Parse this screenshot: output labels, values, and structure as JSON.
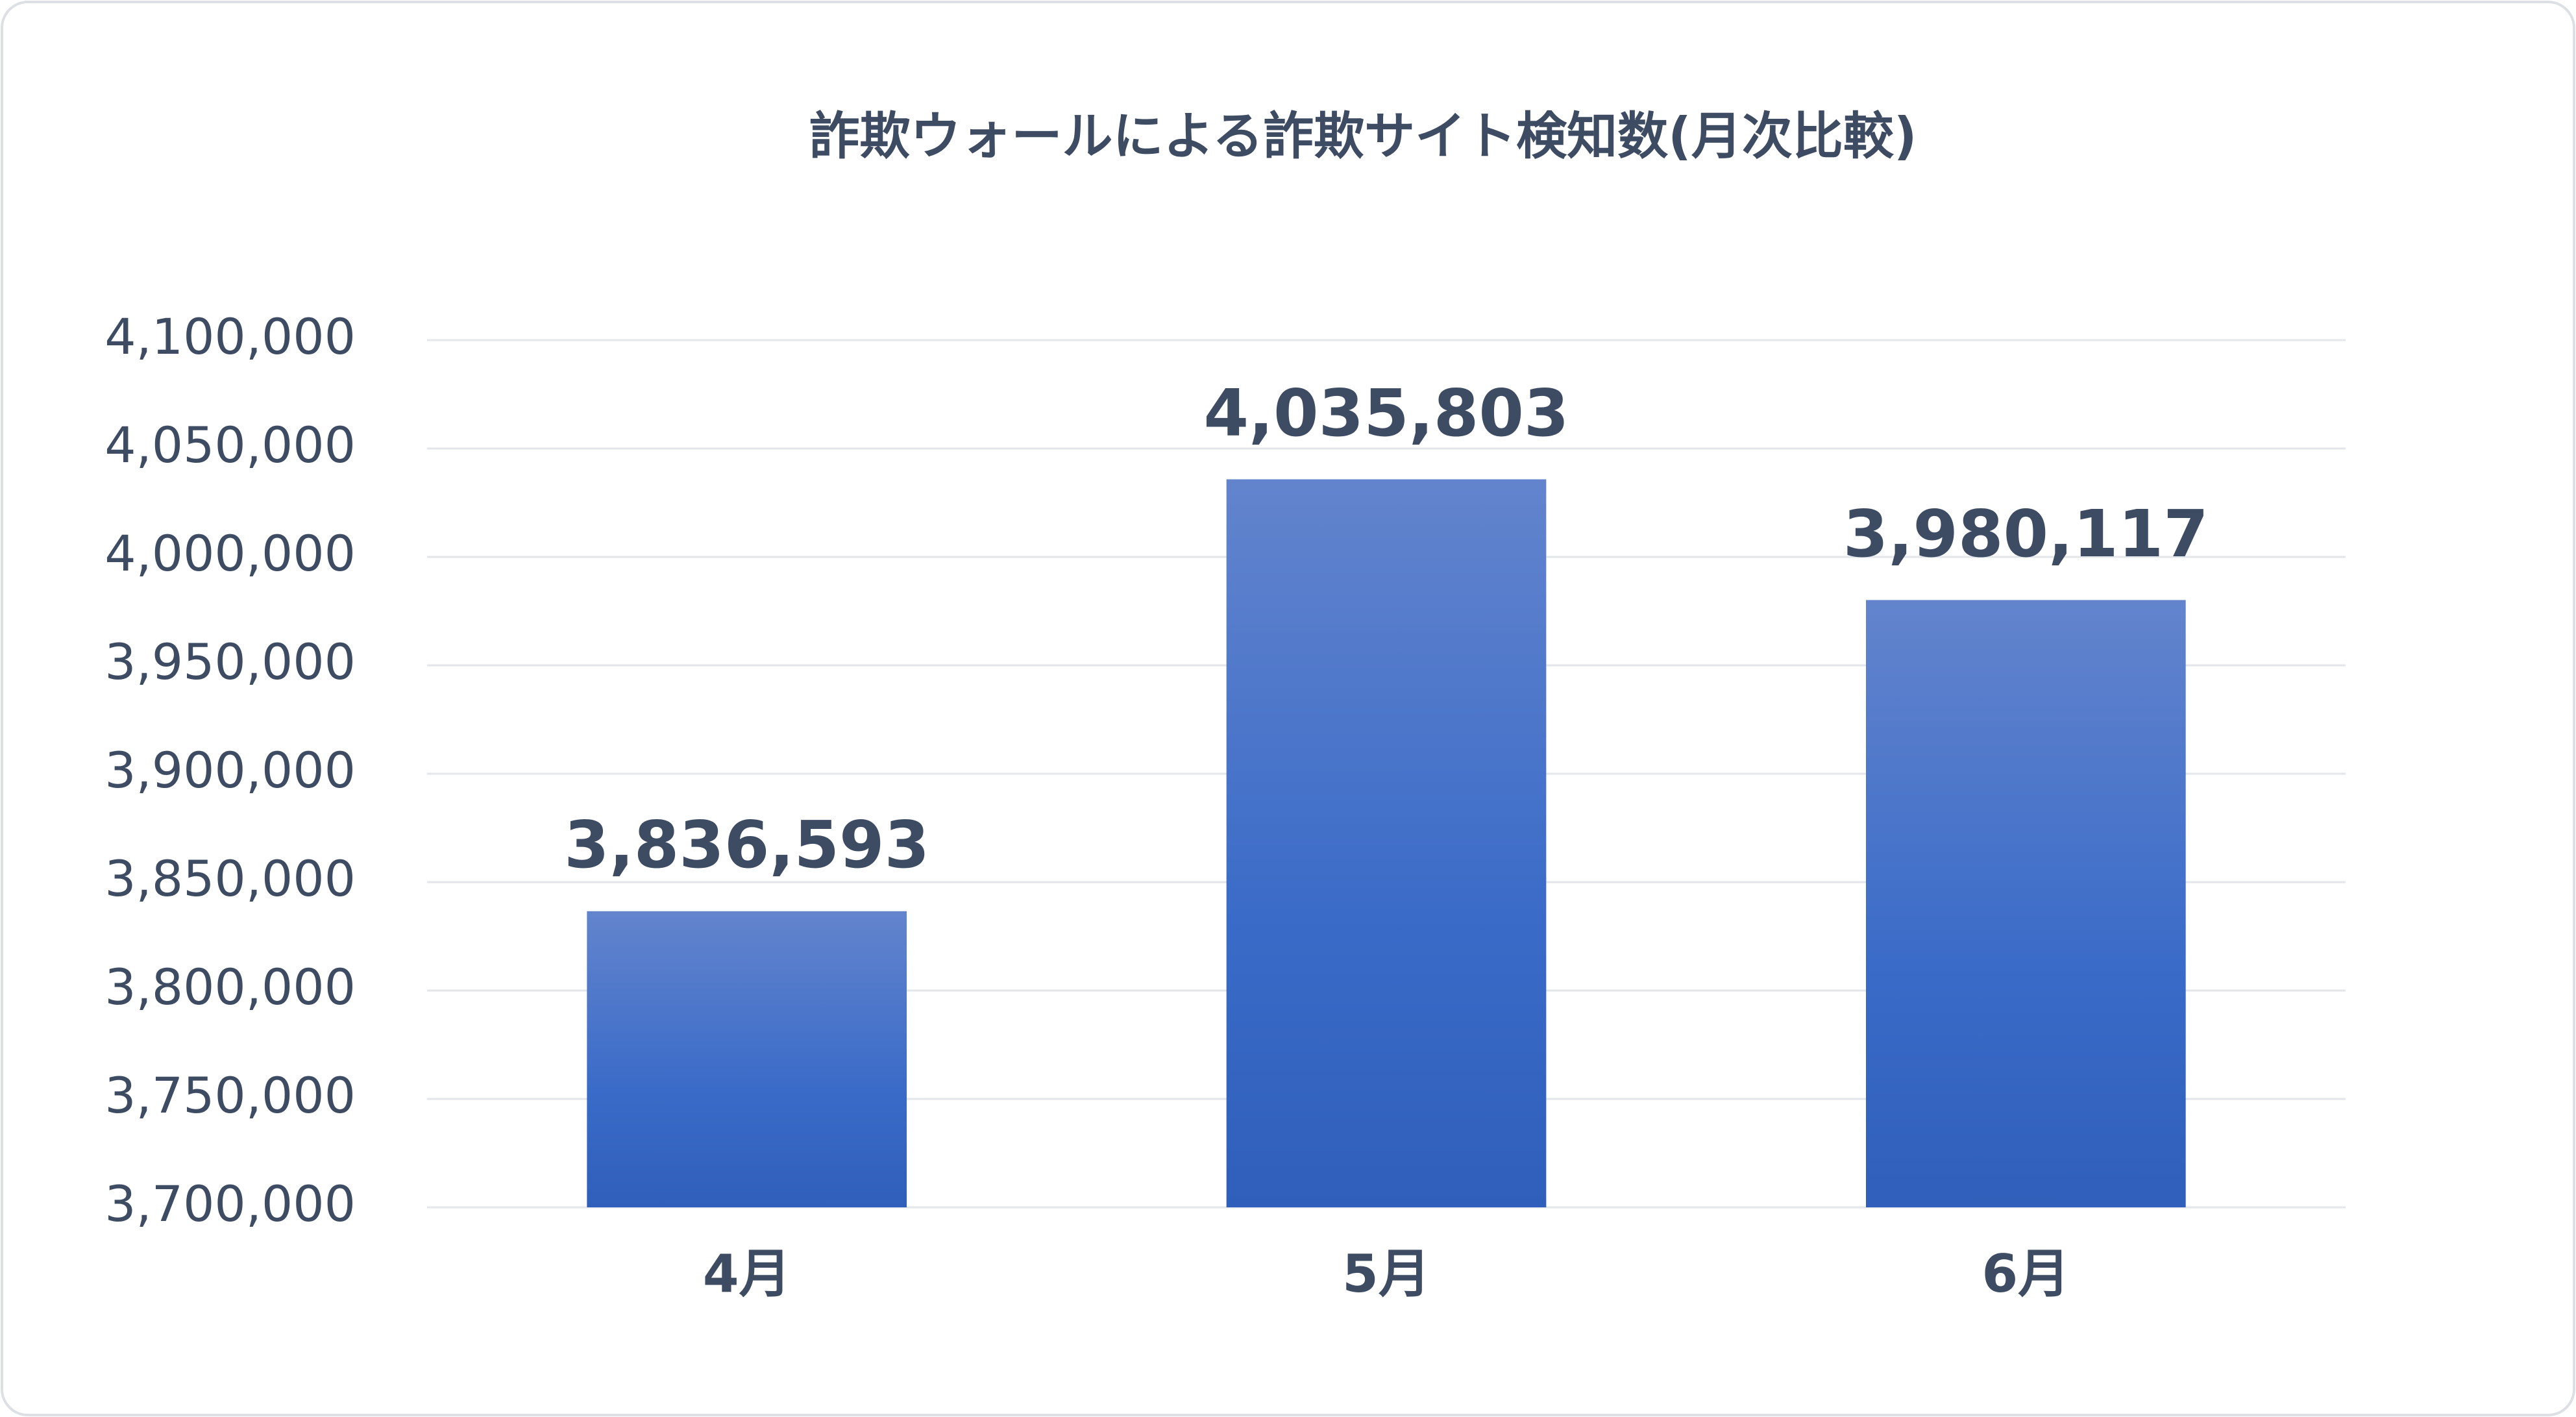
{
  "chart_data": {
    "type": "bar",
    "title": "詐欺ウォールによる詐欺サイト検知数(月次比較)",
    "categories": [
      "4月",
      "5月",
      "6月"
    ],
    "values": [
      3836593,
      4035803,
      3980117
    ],
    "value_labels": [
      "3,836,593",
      "4,035,803",
      "3,980,117"
    ],
    "color": "#3a6bc8",
    "ylim": [
      3700000,
      4100000
    ],
    "yticks": [
      {
        "value": 3700000,
        "label": "3,700,000"
      },
      {
        "value": 3750000,
        "label": "3,750,000"
      },
      {
        "value": 3800000,
        "label": "3,800,000"
      },
      {
        "value": 3850000,
        "label": "3,850,000"
      },
      {
        "value": 3900000,
        "label": "3,900,000"
      },
      {
        "value": 3950000,
        "label": "3,950,000"
      },
      {
        "value": 4000000,
        "label": "4,000,000"
      },
      {
        "value": 4050000,
        "label": "4,050,000"
      },
      {
        "value": 4100000,
        "label": "4,100,000"
      }
    ],
    "grid": true
  }
}
